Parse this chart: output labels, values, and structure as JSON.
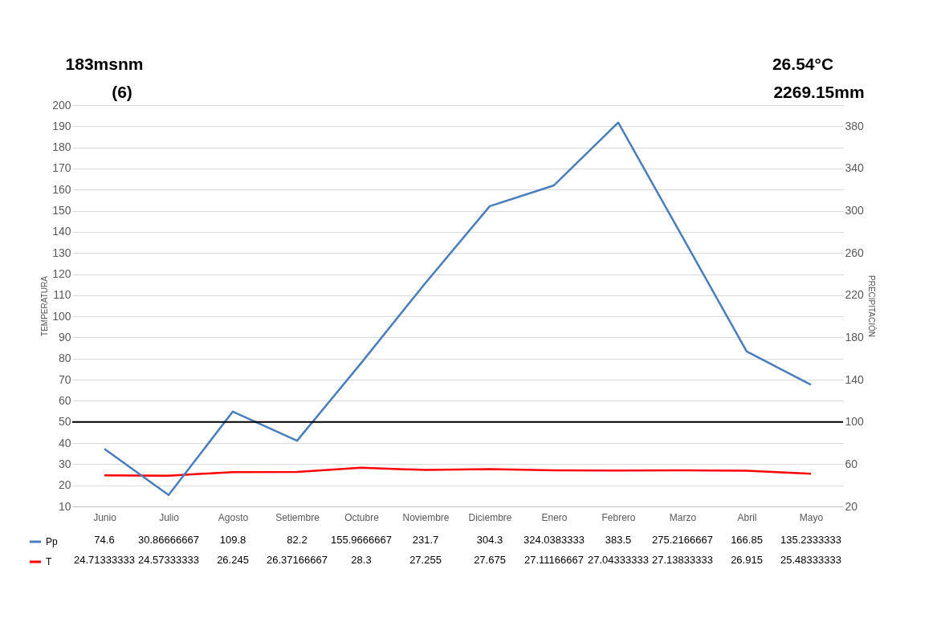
{
  "chart_data": {
    "type": "line",
    "categories": [
      "Junio",
      "Julio",
      "Agosto",
      "Setiembre",
      "Octubre",
      "Noviembre",
      "Diciembre",
      "Enero",
      "Febrero",
      "Marzo",
      "Abril",
      "Mayo"
    ],
    "series": [
      {
        "name": "Pp",
        "color": "#4a7ebb",
        "axis": "y2",
        "values": [
          74.6,
          30.86666667,
          109.8,
          82.2,
          155.9666667,
          231.7,
          304.3,
          324.0383333,
          383.5,
          275.2166667,
          166.85,
          135.2333333
        ]
      },
      {
        "name": "T",
        "color": "#ff0000",
        "values": [
          24.71333333,
          24.57333333,
          26.245,
          26.37166667,
          28.3,
          27.255,
          27.675,
          27.11166667,
          27.04333333,
          27.13833333,
          26.915,
          25.48333333
        ]
      }
    ],
    "ylabel": "TEMPERATURA",
    "y2label": "PRECIPITACIÓN",
    "ylim": [
      10,
      200
    ],
    "yticks": [
      10,
      20,
      30,
      40,
      50,
      60,
      70,
      80,
      90,
      100,
      110,
      120,
      130,
      140,
      150,
      160,
      170,
      180,
      190,
      200
    ],
    "y2lim": [
      20,
      400
    ],
    "y2ticks": [
      20,
      60,
      100,
      140,
      180,
      220,
      260,
      300,
      340,
      380
    ],
    "ref_lines": [
      {
        "axis": "y2",
        "value": 100,
        "color": "#000000"
      }
    ],
    "annotations": [
      "183msnm",
      "(6)",
      "26.54°C",
      "2269.15mm"
    ],
    "data_labels": true,
    "grid": "y",
    "legend": "bottom left"
  }
}
